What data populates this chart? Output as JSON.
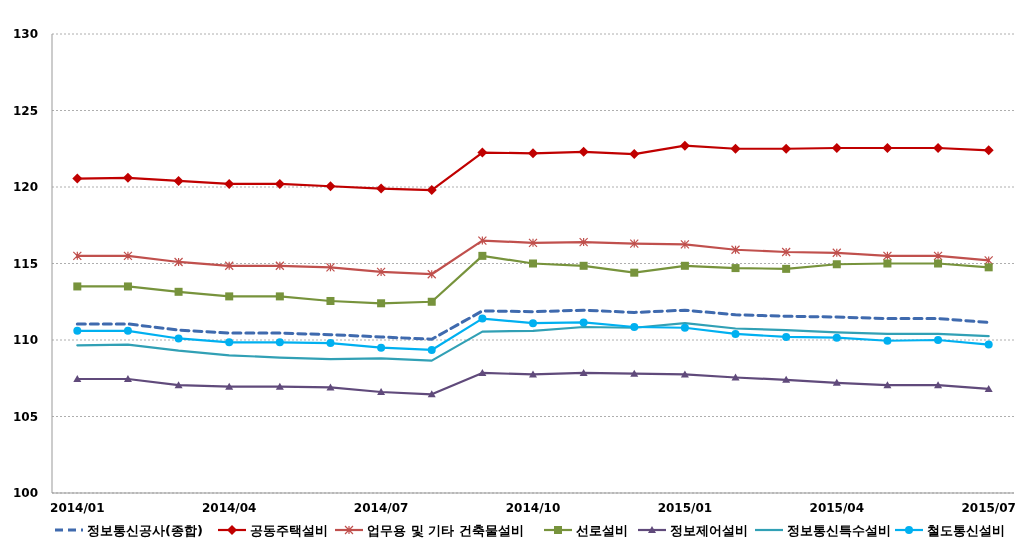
{
  "chart_data": {
    "type": "line",
    "categories": [
      "2014/01",
      null,
      null,
      "2014/04",
      null,
      null,
      "2014/07",
      null,
      null,
      "2014/10",
      null,
      null,
      "2015/01",
      null,
      null,
      "2015/04",
      null,
      null,
      "2015/07"
    ],
    "ylim": [
      100,
      130
    ],
    "yticks": [
      100,
      105,
      110,
      115,
      120,
      125,
      130
    ],
    "grid": "y",
    "legend": "bottom",
    "series": [
      {
        "name": "정보통신공사(종합)",
        "color": "#3f6aae",
        "line_style": "dashed",
        "marker": "none",
        "values": [
          111.05,
          111.05,
          110.65,
          110.45,
          110.45,
          110.35,
          110.2,
          110.05,
          111.9,
          111.85,
          111.95,
          111.8,
          111.95,
          111.65,
          111.55,
          111.5,
          111.4,
          111.4,
          111.15
        ]
      },
      {
        "name": "공동주택설비",
        "color": "#c00000",
        "marker": "diamond",
        "values": [
          120.55,
          120.6,
          120.4,
          120.2,
          120.2,
          120.05,
          119.9,
          119.8,
          122.25,
          122.2,
          122.3,
          122.15,
          122.7,
          122.5,
          122.5,
          122.55,
          122.55,
          122.55,
          122.4
        ]
      },
      {
        "name": "업무용 및 기타 건축물설비",
        "color": "#c0504d",
        "marker": "cross",
        "values": [
          115.5,
          115.5,
          115.1,
          114.85,
          114.85,
          114.75,
          114.45,
          114.3,
          116.5,
          116.35,
          116.4,
          116.3,
          116.25,
          115.9,
          115.75,
          115.7,
          115.5,
          115.5,
          115.2
        ]
      },
      {
        "name": "선로설비",
        "color": "#77933c",
        "marker": "square",
        "values": [
          113.5,
          113.5,
          113.15,
          112.85,
          112.85,
          112.55,
          112.4,
          112.5,
          115.5,
          115.0,
          114.85,
          114.4,
          114.85,
          114.7,
          114.65,
          114.95,
          115.0,
          115.0,
          114.75
        ]
      },
      {
        "name": "정보제어설비",
        "color": "#604a7b",
        "marker": "triangle",
        "values": [
          107.45,
          107.45,
          107.05,
          106.95,
          106.95,
          106.9,
          106.6,
          106.45,
          107.85,
          107.75,
          107.85,
          107.8,
          107.75,
          107.55,
          107.4,
          107.2,
          107.05,
          107.05,
          106.8
        ]
      },
      {
        "name": "정보통신특수설비",
        "color": "#31a0b5",
        "marker": "none",
        "values": [
          109.65,
          109.7,
          109.3,
          109.0,
          108.85,
          108.75,
          108.8,
          108.65,
          110.55,
          110.6,
          110.85,
          110.8,
          111.1,
          110.75,
          110.65,
          110.5,
          110.4,
          110.4,
          110.25
        ]
      },
      {
        "name": "철도통신설비",
        "color": "#00b0f0",
        "marker": "circle",
        "values": [
          110.6,
          110.6,
          110.1,
          109.85,
          109.85,
          109.8,
          109.5,
          109.35,
          111.4,
          111.1,
          111.15,
          110.85,
          110.8,
          110.4,
          110.2,
          110.15,
          109.95,
          110.0,
          109.7
        ]
      }
    ]
  }
}
